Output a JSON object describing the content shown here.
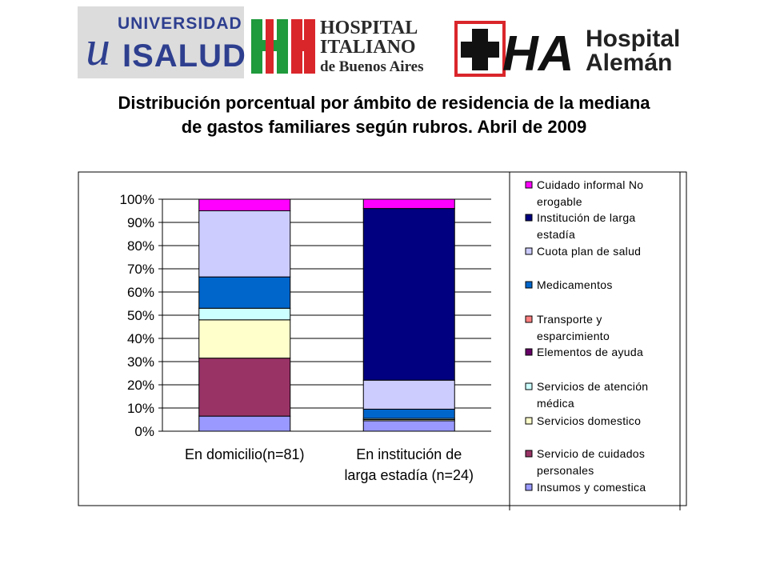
{
  "logos": {
    "isalud": {
      "top": "UNIVERSIDAD",
      "bottom": "ISALUD",
      "mark": "u"
    },
    "italiano": {
      "line1": "HOSPITAL",
      "line2": "ITALIANO",
      "line3": "de Buenos Aires"
    },
    "aleman": {
      "mark": "HA",
      "line1": "Hospital",
      "line2": "Alemán"
    }
  },
  "chart_data": {
    "type": "bar",
    "stacked": true,
    "normalized": true,
    "title_lines": [
      "Distribución porcentual por ámbito de residencia de la mediana",
      "de gastos familiares según rubros. Abril de 2009"
    ],
    "categories": [
      [
        "En domicilio(n=81)"
      ],
      [
        "En institución de",
        "larga estadía (n=24)"
      ]
    ],
    "ylim": [
      0,
      100
    ],
    "yticks": [
      "0%",
      "10%",
      "20%",
      "30%",
      "40%",
      "50%",
      "60%",
      "70%",
      "80%",
      "90%",
      "100%"
    ],
    "grid": true,
    "legend_position": "right",
    "series": [
      {
        "name": "Insumos y comestica",
        "label_lines": [
          "Insumos y comestica"
        ],
        "color": "#9999FF",
        "values": [
          6.5,
          4.5
        ]
      },
      {
        "name": "Servicio de cuidados personales",
        "label_lines": [
          "Servicio de cuidados",
          "personales"
        ],
        "color": "#993366",
        "values": [
          25,
          0
        ]
      },
      {
        "name": "Servicios domestico",
        "label_lines": [
          "Servicios domestico"
        ],
        "color": "#FFFFCC",
        "values": [
          16.5,
          0.5
        ]
      },
      {
        "name": "Servicios de atencion medica",
        "label_lines": [
          "Servicios de atención",
          "médica"
        ],
        "color": "#CCFFFF",
        "values": [
          5,
          0.5
        ]
      },
      {
        "name": "Elementos de ayuda",
        "label_lines": [
          "Elementos de ayuda"
        ],
        "color": "#660066",
        "values": [
          0,
          0
        ]
      },
      {
        "name": "Transporte y esparcimiento",
        "label_lines": [
          "Transporte y",
          "esparcimiento"
        ],
        "color": "#FF8080",
        "values": [
          0,
          0
        ]
      },
      {
        "name": "Medicamentos",
        "label_lines": [
          "Medicamentos"
        ],
        "color": "#0066CC",
        "values": [
          13.5,
          4
        ]
      },
      {
        "name": "Cuota plan de salud",
        "label_lines": [
          "Cuota plan de salud"
        ],
        "color": "#CCCCFF",
        "values": [
          28.5,
          12.5
        ]
      },
      {
        "name": "Institucion de larga estadia",
        "label_lines": [
          "Institución de larga",
          "estadía"
        ],
        "color": "#000080",
        "values": [
          0,
          74
        ]
      },
      {
        "name": "Cuidado informal No erogable",
        "label_lines": [
          "Cuidado informal No",
          "erogable"
        ],
        "color": "#FF00FF",
        "values": [
          5,
          4
        ]
      }
    ]
  }
}
